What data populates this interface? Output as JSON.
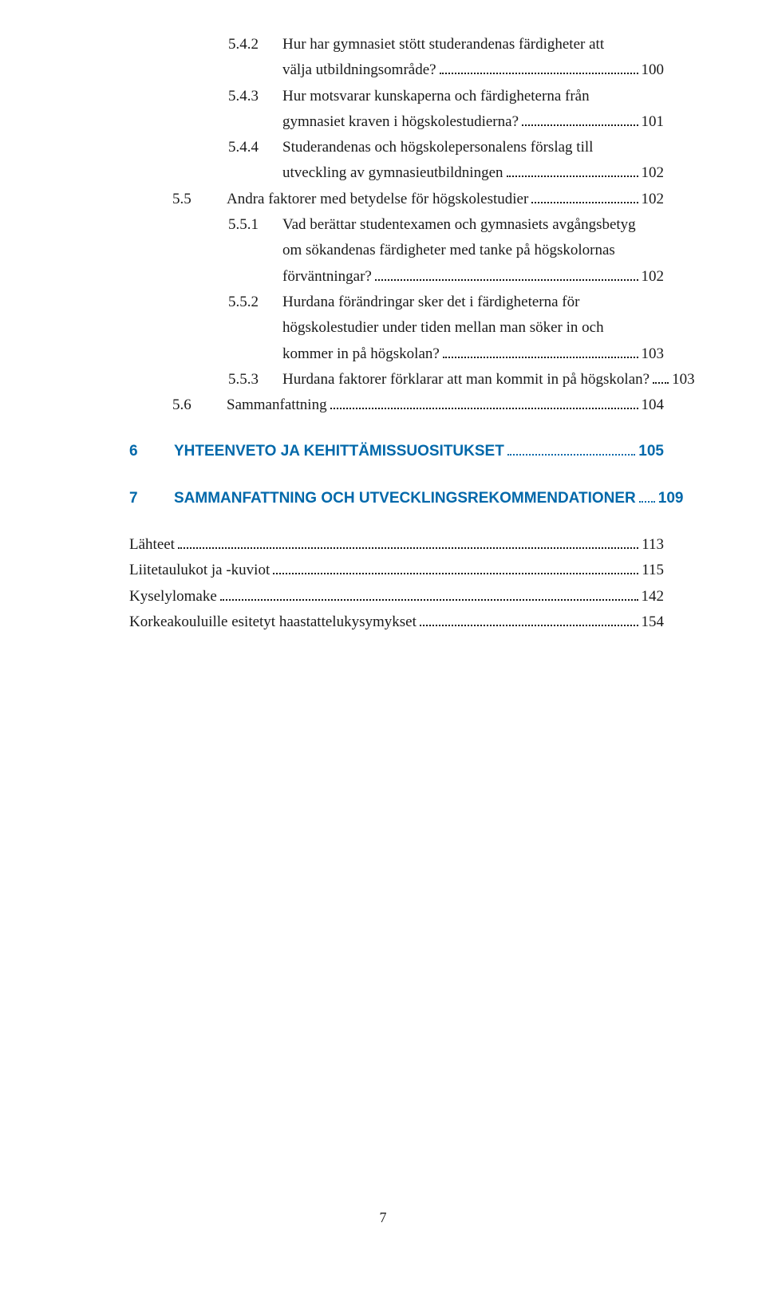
{
  "colors": {
    "text": "#1a1a1a",
    "chapter": "#0068aa",
    "background": "#ffffff"
  },
  "typography": {
    "body_font": "Georgia serif",
    "chapter_font": "Arial sans-serif",
    "body_fontsize": 19,
    "chapter_fontsize": 19,
    "chapter_weight": "bold"
  },
  "entries": {
    "e542": {
      "num": "5.4.2",
      "line1": "Hur har gymnasiet stött studerandenas färdigheter att",
      "line2": "välja utbildningsområde?",
      "page": "100"
    },
    "e543": {
      "num": "5.4.3",
      "line1": "Hur motsvarar kunskaperna och färdigheterna från",
      "line2": "gymnasiet kraven i högskolestudierna?",
      "page": "101"
    },
    "e544": {
      "num": "5.4.4",
      "line1": "Studerandenas och högskolepersonalens förslag till",
      "line2": "utveckling av gymnasieutbildningen",
      "page": "102"
    },
    "e55": {
      "num": "5.5",
      "line1": "Andra faktorer med betydelse för högskolestudier",
      "page": "102"
    },
    "e551": {
      "num": "5.5.1",
      "line1": "Vad berättar studentexamen och gymnasiets avgångsbetyg",
      "line2": "om sökandenas färdigheter med tanke på högskolornas",
      "line3": "förväntningar?",
      "page": "102"
    },
    "e552": {
      "num": "5.5.2",
      "line1": "Hurdana förändringar sker det i färdigheterna för",
      "line2": "högskolestudier under tiden mellan man söker in och",
      "line3": "kommer in på högskolan?",
      "page": "103"
    },
    "e553": {
      "num": "5.5.3",
      "line1": "Hurdana faktorer förklarar att man kommit in på högskolan?",
      "page": "103"
    },
    "e56": {
      "num": "5.6",
      "line1": "Sammanfattning",
      "page": "104"
    },
    "ch6": {
      "num": "6",
      "line1": "YHTEENVETO JA KEHITTÄMISSUOSITUKSET",
      "page": "105"
    },
    "ch7": {
      "num": "7",
      "line1": "SAMMANFATTNING OCH UTVECKLINGSREKOMMENDATIONER",
      "page": "109"
    },
    "app1": {
      "line1": "Lähteet",
      "page": "113"
    },
    "app2": {
      "line1": "Liitetaulukot ja -kuviot",
      "page": "115"
    },
    "app3": {
      "line1": "Kyselylomake",
      "page": "142"
    },
    "app4": {
      "line1": "Korkeakouluille esitetyt haastattelukysymykset",
      "page": "154"
    }
  },
  "pageNumber": "7"
}
